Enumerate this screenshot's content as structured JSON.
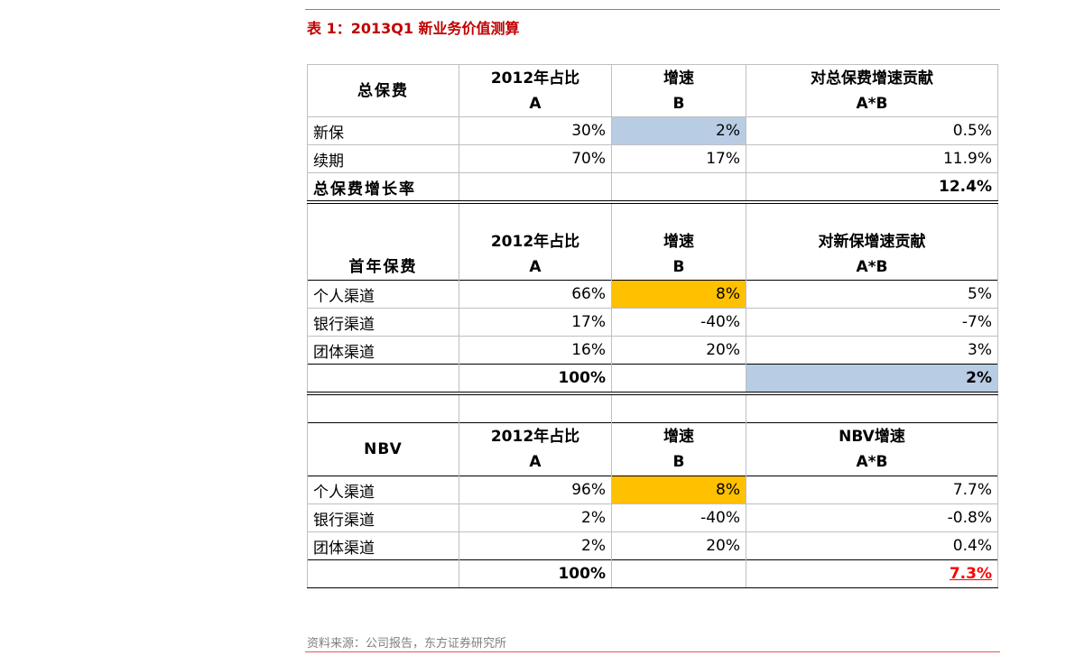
{
  "title": "表 1：2013Q1 新业务价值测算",
  "source": "资料来源：公司报告，东方证券研究所",
  "table1": {
    "header": [
      "总保费",
      "2012年占比\nA",
      "增速\nB",
      "对总保费增速贡献\nA*B"
    ],
    "header_a1": "2012年占比",
    "header_a2": "A",
    "header_b1": "增速",
    "header_b2": "B",
    "header_c1": "对总保费增速贡献",
    "header_c2": "A*B",
    "rows": [
      {
        "label": "新保",
        "a": "30%",
        "b": "2%",
        "c": "0.5%"
      },
      {
        "label": "续期",
        "a": "70%",
        "b": "17%",
        "c": "11.9%"
      }
    ],
    "total": {
      "label": "总保费增长率",
      "a": "",
      "b": "",
      "c": "12.4%"
    }
  },
  "table2": {
    "label": "首年保费",
    "header_a1": "2012年占比",
    "header_a2": "A",
    "header_b1": "增速",
    "header_b2": "B",
    "header_c1": "对新保增速贡献",
    "header_c2": "A*B",
    "rows": [
      {
        "label": "个人渠道",
        "a": "66%",
        "b": "8%",
        "c": "5%"
      },
      {
        "label": "银行渠道",
        "a": "17%",
        "b": "-40%",
        "c": "-7%"
      },
      {
        "label": "团体渠道",
        "a": "16%",
        "b": "20%",
        "c": "3%"
      }
    ],
    "total": {
      "label": "",
      "a": "100%",
      "b": "",
      "c": "2%"
    }
  },
  "table3": {
    "label": "NBV",
    "header_a1": "2012年占比",
    "header_a2": "A",
    "header_b1": "增速",
    "header_b2": "B",
    "header_c1": "NBV增速",
    "header_c2": "A*B",
    "rows": [
      {
        "label": "个人渠道",
        "a": "96%",
        "b": "8%",
        "c": "7.7%"
      },
      {
        "label": "银行渠道",
        "a": "2%",
        "b": "-40%",
        "c": "-0.8%"
      },
      {
        "label": "团体渠道",
        "a": "2%",
        "b": "20%",
        "c": "0.4%"
      }
    ],
    "total": {
      "label": "",
      "a": "100%",
      "b": "",
      "c": "7.3%"
    }
  },
  "colors": {
    "accent_red": "#c00000",
    "highlight_blue": "#b8cce4",
    "highlight_orange": "#ffc000"
  }
}
